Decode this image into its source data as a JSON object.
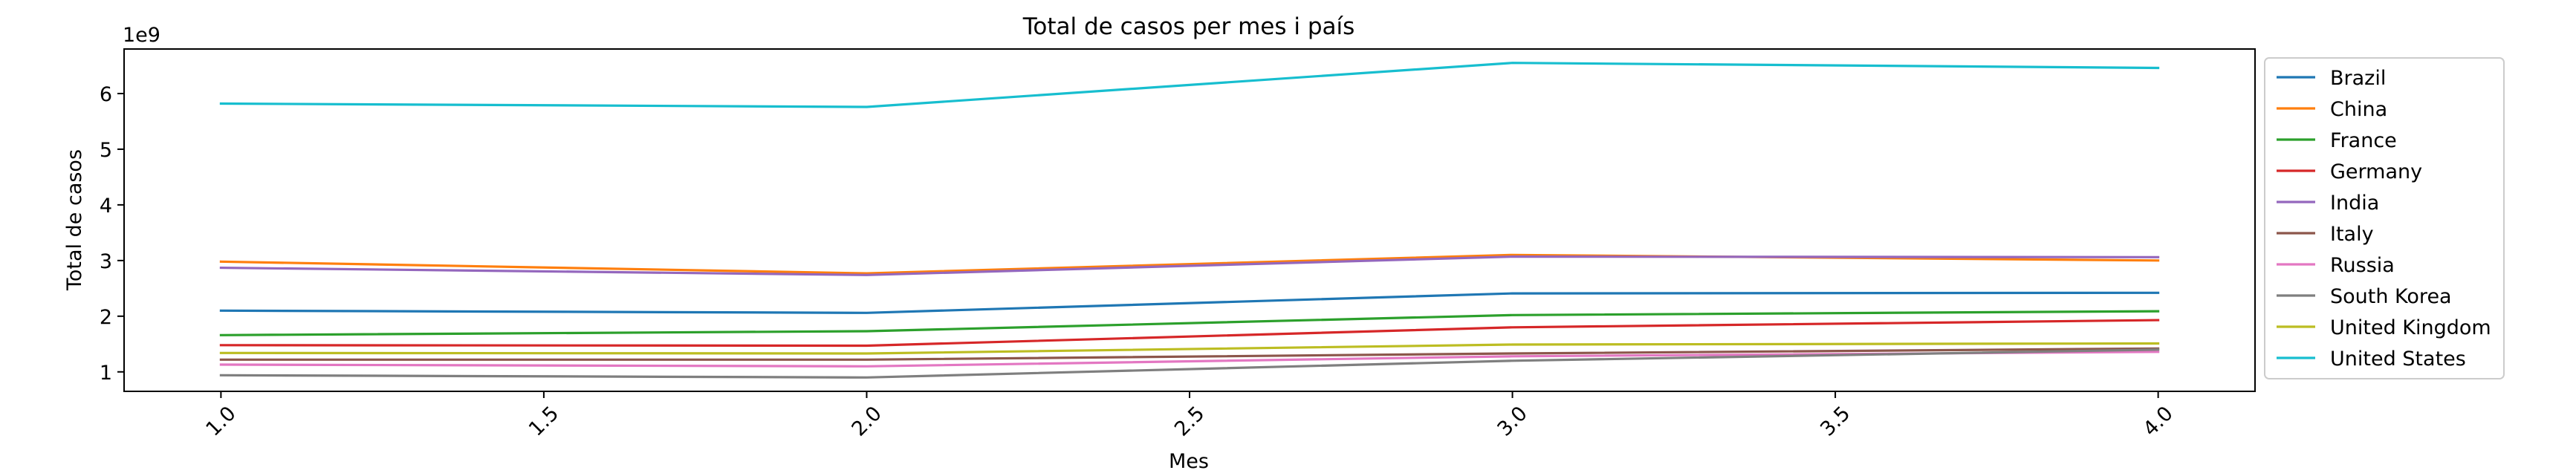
{
  "chart_data": {
    "type": "line",
    "title": "Total de casos per mes i país",
    "xlabel": "Mes",
    "ylabel": "Total de casos",
    "y_multiplier_label": "1e9",
    "x": [
      1.0,
      2.0,
      3.0,
      4.0
    ],
    "xlim": [
      0.85,
      4.15
    ],
    "ylim": [
      0.65,
      6.8
    ],
    "x_ticks": [
      1.0,
      1.5,
      2.0,
      2.5,
      3.0,
      3.5,
      4.0
    ],
    "x_tick_labels": [
      "1.0",
      "1.5",
      "2.0",
      "2.5",
      "3.0",
      "3.5",
      "4.0"
    ],
    "y_ticks": [
      1,
      2,
      3,
      4,
      5,
      6
    ],
    "y_tick_labels": [
      "1",
      "2",
      "3",
      "4",
      "5",
      "6"
    ],
    "grid": false,
    "legend_position": "outside-right",
    "series": [
      {
        "name": "Brazil",
        "color": "#1f77b4",
        "values": [
          2.1,
          2.06,
          2.41,
          2.42
        ]
      },
      {
        "name": "China",
        "color": "#ff7f0e",
        "values": [
          2.98,
          2.77,
          3.1,
          3.0
        ]
      },
      {
        "name": "France",
        "color": "#2ca02c",
        "values": [
          1.66,
          1.73,
          2.02,
          2.09
        ]
      },
      {
        "name": "Germany",
        "color": "#d62728",
        "values": [
          1.48,
          1.47,
          1.8,
          1.93
        ]
      },
      {
        "name": "India",
        "color": "#9467bd",
        "values": [
          2.87,
          2.74,
          3.07,
          3.06
        ]
      },
      {
        "name": "Italy",
        "color": "#8c564b",
        "values": [
          1.22,
          1.22,
          1.33,
          1.42
        ]
      },
      {
        "name": "Russia",
        "color": "#e377c2",
        "values": [
          1.13,
          1.1,
          1.28,
          1.36
        ]
      },
      {
        "name": "South Korea",
        "color": "#7f7f7f",
        "values": [
          0.94,
          0.9,
          1.2,
          1.4
        ]
      },
      {
        "name": "United Kingdom",
        "color": "#bcbd22",
        "values": [
          1.34,
          1.33,
          1.49,
          1.51
        ]
      },
      {
        "name": "United States",
        "color": "#17becf",
        "values": [
          5.82,
          5.76,
          6.55,
          6.46
        ]
      }
    ]
  }
}
